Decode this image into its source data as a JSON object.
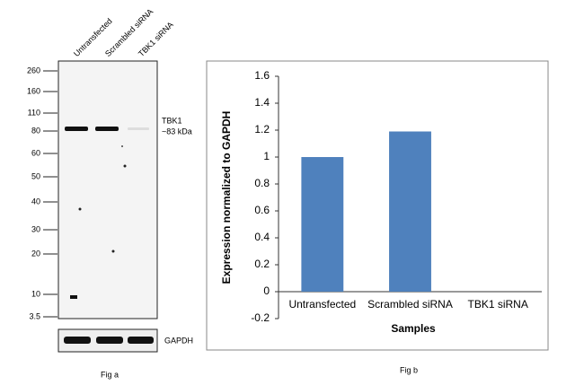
{
  "blot": {
    "lanes": [
      "Untransfected",
      "Scrambled siRNA",
      "TBK1 siRNA"
    ],
    "markers": [
      260,
      160,
      110,
      80,
      60,
      50,
      40,
      30,
      20,
      10,
      3.5
    ],
    "target": "TBK1",
    "target_size": "~83 kDa",
    "loading_control": "GAPDH",
    "caption": "Fig a"
  },
  "chart_data": {
    "type": "bar",
    "caption": "Fig b",
    "x_label": "Samples",
    "y_label": "Expression normalized to GAPDH",
    "categories": [
      "Untransfected",
      "Scrambled siRNA",
      "TBK1 siRNA"
    ],
    "values": [
      1,
      1.19,
      0
    ],
    "color": "#4f81bd",
    "ylim": [
      -0.2,
      1.6
    ],
    "yticks": [
      -0.2,
      0,
      0.2,
      0.4,
      0.6,
      0.8,
      1,
      1.2,
      1.4,
      1.6
    ]
  }
}
